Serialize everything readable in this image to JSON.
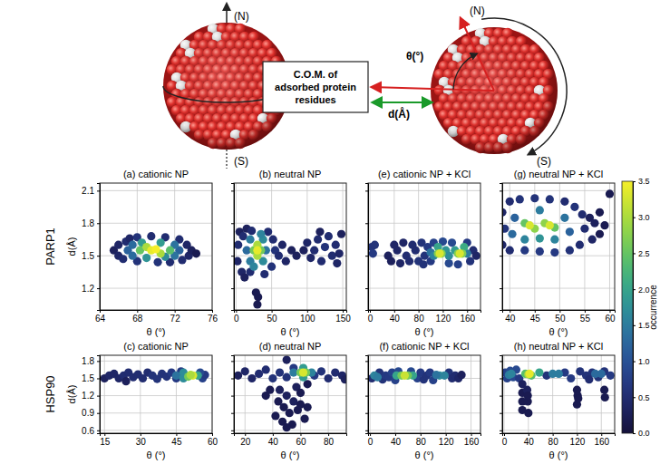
{
  "diagram": {
    "north_label": "(N)",
    "south_label": "(S)",
    "angle_label": "θ(°)",
    "com_label": [
      "C.O.M. of",
      "adsorbed protein",
      "residues"
    ],
    "distance_label": "d(Å)"
  },
  "row_labels": [
    "PARP1",
    "HSP90"
  ],
  "colorbar": {
    "label": "occurrence",
    "range": [
      0,
      3.5
    ],
    "ticks": [
      {
        "value": 0,
        "label": "0.0"
      },
      0.5,
      {
        "value": 1,
        "label": "1.0"
      },
      1.5,
      {
        "value": 2,
        "label": "2.0"
      },
      2.5,
      {
        "value": 3,
        "label": "3.0"
      },
      3.5
    ]
  },
  "chart_data": [
    {
      "type": "scatter",
      "title": "(a) cationic NP",
      "x_label": "θ (°)",
      "y_label": "d(Å)",
      "xlim": [
        64,
        76
      ],
      "ylim": [
        1.0,
        2.17
      ],
      "xticks": [
        64,
        68,
        72,
        76
      ],
      "yticks": [
        1.2,
        1.5,
        1.8,
        2.1
      ],
      "grid": true,
      "x": [
        65.5,
        66,
        66,
        66.5,
        66.8,
        67.2,
        68,
        68,
        69.5,
        70.2,
        71,
        71.5,
        72.5,
        72.8,
        73.3,
        73.5,
        73.8,
        74.3,
        67,
        67.5,
        67.5,
        72.5,
        72,
        72,
        68.5,
        70.5,
        69,
        71,
        68.3,
        71.5,
        69,
        70.5,
        69.5,
        70
      ],
      "y": [
        1.55,
        1.5,
        1.6,
        1.47,
        1.63,
        1.66,
        1.45,
        1.67,
        1.68,
        1.44,
        1.67,
        1.44,
        1.65,
        1.46,
        1.6,
        1.5,
        1.55,
        1.52,
        1.55,
        1.5,
        1.6,
        1.55,
        1.5,
        1.6,
        1.62,
        1.62,
        1.48,
        1.49,
        1.55,
        1.55,
        1.58,
        1.52,
        1.55,
        1.56
      ],
      "occurrence": [
        0.3,
        0.4,
        0.4,
        0.5,
        0.5,
        0.4,
        0.6,
        0.6,
        0.5,
        0.6,
        0.5,
        0.5,
        0.5,
        0.5,
        0.4,
        0.4,
        0.3,
        0.2,
        1.2,
        1.3,
        1.3,
        1.2,
        1.4,
        1.4,
        1.9,
        1.9,
        1.8,
        1.7,
        2.5,
        2.4,
        3.0,
        3.0,
        3.4,
        3.5
      ]
    },
    {
      "type": "scatter",
      "title": "(b) neutral NP",
      "x_label": "θ (°)",
      "xlim": [
        -3,
        155
      ],
      "ylim": [
        1.0,
        2.17
      ],
      "xticks": [
        0,
        50,
        100,
        150
      ],
      "yticks": [
        1.2,
        1.5,
        1.8,
        2.1
      ],
      "grid": true,
      "tick_labels": "x",
      "x": [
        2,
        3,
        5,
        8,
        10,
        12,
        15,
        20,
        45,
        50,
        52,
        55,
        60,
        65,
        70,
        78,
        85,
        95,
        100,
        105,
        110,
        115,
        120,
        125,
        130,
        135,
        140,
        145,
        148,
        142,
        118,
        30,
        31,
        28,
        40,
        22,
        15,
        20,
        20,
        42,
        38,
        38,
        25,
        35,
        25,
        35,
        30,
        30,
        30
      ],
      "y": [
        1.45,
        1.6,
        1.72,
        1.35,
        1.68,
        1.3,
        1.75,
        1.35,
        1.72,
        1.4,
        1.65,
        1.55,
        1.5,
        1.6,
        1.45,
        1.55,
        1.5,
        1.55,
        1.62,
        1.48,
        1.55,
        1.65,
        1.45,
        1.58,
        1.68,
        1.5,
        1.6,
        1.52,
        1.7,
        1.43,
        1.72,
        1.05,
        1.12,
        1.16,
        1.33,
        1.73,
        1.55,
        1.45,
        1.65,
        1.55,
        1.45,
        1.65,
        1.4,
        1.7,
        1.55,
        1.55,
        1.5,
        1.6,
        1.55
      ],
      "occurrence": [
        0.4,
        0.5,
        0.3,
        0.4,
        0.5,
        0.3,
        0.3,
        0.5,
        0.5,
        0.6,
        0.5,
        0.6,
        0.5,
        0.4,
        0.4,
        0.3,
        0.3,
        0.3,
        0.4,
        0.4,
        0.5,
        0.5,
        0.5,
        0.6,
        0.5,
        0.5,
        0.5,
        0.4,
        0.3,
        0.4,
        0.3,
        0.2,
        0.2,
        0.2,
        0.5,
        0.5,
        1.3,
        1.5,
        1.5,
        1.4,
        1.7,
        1.7,
        1.6,
        1.6,
        2.6,
        2.6,
        3.0,
        3.0,
        3.4
      ]
    },
    {
      "type": "scatter",
      "title": "(e) cationic NP + KCl",
      "x_label": "θ (°)",
      "xlim": [
        -3,
        182
      ],
      "ylim": [
        1.0,
        2.17
      ],
      "xticks": [
        0,
        40,
        80,
        120,
        160
      ],
      "yticks": [
        1.2,
        1.5,
        1.8,
        2.1
      ],
      "grid": true,
      "tick_labels": "x",
      "x": [
        3,
        5,
        8,
        30,
        35,
        40,
        45,
        50,
        55,
        60,
        65,
        70,
        75,
        80,
        85,
        90,
        95,
        100,
        170,
        175,
        165,
        160,
        105,
        135,
        130,
        145,
        120,
        88,
        100,
        105,
        125,
        140,
        160,
        130,
        112,
        155,
        112,
        118,
        145,
        152,
        115,
        148
      ],
      "y": [
        1.58,
        1.52,
        1.6,
        1.5,
        1.45,
        1.6,
        1.55,
        1.43,
        1.62,
        1.5,
        1.45,
        1.6,
        1.55,
        1.45,
        1.62,
        1.5,
        1.58,
        1.45,
        1.55,
        1.5,
        1.45,
        1.62,
        1.62,
        1.62,
        1.43,
        1.42,
        1.63,
        1.42,
        1.53,
        1.5,
        1.55,
        1.55,
        1.52,
        1.5,
        1.58,
        1.58,
        1.52,
        1.52,
        1.52,
        1.52,
        1.52,
        1.52
      ],
      "occurrence": [
        0.6,
        0.7,
        0.6,
        0.3,
        0.3,
        0.4,
        0.4,
        0.4,
        0.4,
        0.5,
        0.5,
        0.5,
        0.5,
        0.6,
        0.6,
        0.6,
        0.7,
        0.7,
        0.5,
        0.4,
        0.6,
        0.7,
        0.8,
        0.9,
        0.9,
        0.8,
        0.9,
        0.6,
        1.4,
        1.6,
        1.8,
        1.9,
        1.5,
        1.7,
        2.0,
        2.1,
        2.7,
        2.7,
        2.7,
        2.7,
        3.3,
        3.3
      ]
    },
    {
      "type": "scatter",
      "title": "(g) neutral NP + KCl",
      "x_label": "θ (°)",
      "xlim": [
        38.5,
        61
      ],
      "ylim": [
        1.0,
        2.17
      ],
      "xticks": [
        40,
        45,
        50,
        55,
        60
      ],
      "yticks": [
        1.2,
        1.5,
        1.8,
        2.1
      ],
      "grid": true,
      "tick_labels": "x",
      "x": [
        38.5,
        38.5,
        39,
        40,
        40,
        42,
        45,
        48,
        51,
        53,
        54,
        52,
        49,
        46,
        43,
        55,
        56,
        57,
        58,
        58,
        59,
        60,
        56.5,
        54.5,
        40.5,
        41,
        43,
        46,
        49,
        51,
        52,
        46,
        43,
        45,
        47,
        49,
        44,
        48
      ],
      "y": [
        1.6,
        1.9,
        1.75,
        2.0,
        1.55,
        2.02,
        2.03,
        2.02,
        2.0,
        1.95,
        1.6,
        1.55,
        1.53,
        1.54,
        1.55,
        1.75,
        1.85,
        1.8,
        1.7,
        1.9,
        1.78,
        2.07,
        1.65,
        1.88,
        1.7,
        1.85,
        1.65,
        1.92,
        1.65,
        1.85,
        1.72,
        1.66,
        1.8,
        1.75,
        1.8,
        1.76,
        1.78,
        1.78
      ],
      "occurrence": [
        0.4,
        0.4,
        0.6,
        0.5,
        0.5,
        0.6,
        0.6,
        0.6,
        0.5,
        0.6,
        0.5,
        0.6,
        0.7,
        0.7,
        0.7,
        0.5,
        0.3,
        0.3,
        0.2,
        0.2,
        0.2,
        0.2,
        0.4,
        0.5,
        1.3,
        1.2,
        1.6,
        1.5,
        1.6,
        1.4,
        1.2,
        1.8,
        2.5,
        2.8,
        2.8,
        2.5,
        3.3,
        3.3
      ]
    },
    {
      "type": "scatter",
      "title": "(c) cationic NP",
      "x_label": "θ (°)",
      "y_label": "d(Å)",
      "xlim": [
        13,
        60
      ],
      "ylim": [
        0.55,
        1.9
      ],
      "xticks": [
        15,
        30,
        45,
        60
      ],
      "yticks": [
        0.6,
        0.9,
        1.2,
        1.5,
        1.8
      ],
      "grid": true,
      "x": [
        15,
        17,
        19,
        21,
        23,
        25,
        27,
        29,
        31,
        33,
        35,
        37,
        39,
        41,
        43,
        45,
        47,
        56,
        57,
        55,
        24,
        45,
        48,
        48,
        54,
        50,
        52,
        51
      ],
      "y": [
        1.5,
        1.55,
        1.58,
        1.5,
        1.55,
        1.6,
        1.52,
        1.57,
        1.5,
        1.6,
        1.55,
        1.49,
        1.58,
        1.53,
        1.6,
        1.5,
        1.62,
        1.5,
        1.56,
        1.6,
        1.45,
        1.55,
        1.5,
        1.6,
        1.55,
        1.53,
        1.55,
        1.56
      ],
      "occurrence": [
        0.3,
        0.4,
        0.4,
        0.4,
        0.5,
        0.5,
        0.5,
        0.5,
        0.5,
        0.5,
        0.6,
        0.6,
        0.6,
        0.6,
        0.7,
        0.7,
        0.7,
        0.8,
        0.7,
        0.9,
        0.3,
        1.4,
        1.7,
        1.7,
        2.0,
        2.6,
        3.3,
        3.0
      ]
    },
    {
      "type": "scatter",
      "title": "(d) neutral NP",
      "x_label": "θ (°)",
      "xlim": [
        12,
        93
      ],
      "ylim": [
        0.55,
        1.9
      ],
      "xticks": [
        20,
        40,
        60,
        80
      ],
      "yticks": [
        0.6,
        0.9,
        1.2,
        1.5,
        1.8
      ],
      "grid": true,
      "tick_labels": "x",
      "x": [
        15,
        20,
        25,
        30,
        35,
        40,
        45,
        50,
        55,
        70,
        75,
        80,
        85,
        90,
        92,
        45,
        50,
        55,
        48,
        52,
        58,
        42,
        60,
        63,
        47,
        54,
        50,
        65,
        44,
        57,
        35,
        60,
        65,
        50,
        38,
        55,
        68,
        62,
        62,
        60,
        64,
        62
      ],
      "y": [
        1.55,
        1.62,
        1.5,
        1.58,
        1.65,
        1.5,
        1.6,
        1.52,
        1.68,
        1.55,
        1.62,
        1.5,
        1.6,
        1.55,
        1.48,
        1.3,
        1.2,
        1.1,
        1.0,
        0.9,
        0.95,
        0.85,
        1.05,
        0.8,
        0.75,
        0.7,
        0.65,
        1.0,
        1.1,
        1.35,
        1.2,
        1.25,
        1.4,
        1.82,
        1.3,
        1.6,
        1.6,
        1.52,
        1.68,
        1.6,
        1.6,
        1.6
      ],
      "occurrence": [
        0.3,
        0.4,
        0.4,
        0.5,
        0.5,
        0.6,
        0.6,
        0.6,
        0.7,
        0.7,
        0.6,
        0.5,
        0.5,
        0.4,
        0.3,
        0.3,
        0.3,
        0.3,
        0.2,
        0.2,
        0.2,
        0.2,
        0.2,
        0.2,
        0.2,
        0.2,
        0.2,
        0.2,
        0.2,
        0.3,
        0.2,
        0.2,
        0.2,
        0.3,
        0.2,
        1.5,
        1.6,
        1.9,
        1.9,
        2.6,
        2.6,
        3.3
      ]
    },
    {
      "type": "scatter",
      "title": "(f) cationic NP + KCl",
      "x_label": "θ (°)",
      "xlim": [
        -3,
        175
      ],
      "ylim": [
        0.55,
        1.9
      ],
      "xticks": [
        0,
        40,
        80,
        120,
        160
      ],
      "yticks": [
        0.6,
        0.9,
        1.2,
        1.5,
        1.8
      ],
      "grid": true,
      "tick_labels": "x",
      "x": [
        3,
        15,
        20,
        25,
        30,
        35,
        40,
        75,
        80,
        85,
        90,
        95,
        100,
        125,
        130,
        135,
        140,
        145,
        65,
        45,
        7,
        12,
        110,
        118,
        105,
        42,
        68,
        50,
        60,
        55
      ],
      "y": [
        1.5,
        1.6,
        1.48,
        1.55,
        1.52,
        1.6,
        1.47,
        1.5,
        1.6,
        1.48,
        1.55,
        1.6,
        1.47,
        1.6,
        1.5,
        1.55,
        1.5,
        1.56,
        1.62,
        1.62,
        1.55,
        1.52,
        1.55,
        1.55,
        1.56,
        1.55,
        1.55,
        1.55,
        1.55,
        1.55
      ],
      "occurrence": [
        0.5,
        0.6,
        0.6,
        0.7,
        0.7,
        0.8,
        0.8,
        0.8,
        0.7,
        0.6,
        0.6,
        0.7,
        0.8,
        0.6,
        0.5,
        0.5,
        0.4,
        0.3,
        0.9,
        0.9,
        1.6,
        1.5,
        1.7,
        1.6,
        1.4,
        2.0,
        2.0,
        2.6,
        2.6,
        3.2
      ]
    },
    {
      "type": "scatter",
      "title": "(h) neutral NP + KCl",
      "x_label": "θ (°)",
      "xlim": [
        -3,
        182
      ],
      "ylim": [
        0.55,
        1.9
      ],
      "xticks": [
        0,
        40,
        80,
        120,
        160
      ],
      "yticks": [
        0.6,
        0.9,
        1.2,
        1.5,
        1.8
      ],
      "grid": true,
      "tick_labels": "x",
      "x": [
        2,
        5,
        10,
        15,
        20,
        25,
        30,
        30,
        30,
        30,
        38,
        39,
        40,
        39,
        70,
        100,
        110,
        125,
        135,
        145,
        155,
        165,
        175,
        120,
        121,
        120,
        122,
        165,
        166,
        140,
        8,
        12,
        80,
        90,
        150,
        160,
        58,
        35,
        45,
        40,
        42
      ],
      "y": [
        1.6,
        1.5,
        1.63,
        1.52,
        1.65,
        1.5,
        1.4,
        1.25,
        1.1,
        0.95,
        1.3,
        1.1,
        0.9,
        1.2,
        1.55,
        1.6,
        1.5,
        1.62,
        1.55,
        1.6,
        1.52,
        1.62,
        1.55,
        1.3,
        1.2,
        1.05,
        1.15,
        1.3,
        1.17,
        1.48,
        1.56,
        1.58,
        1.58,
        1.58,
        1.58,
        1.58,
        1.6,
        1.58,
        1.55,
        1.57,
        1.58
      ],
      "occurrence": [
        0.8,
        0.8,
        0.9,
        0.9,
        0.9,
        0.7,
        0.3,
        0.2,
        0.2,
        0.2,
        0.3,
        0.2,
        0.2,
        0.2,
        0.6,
        0.7,
        0.7,
        0.6,
        0.6,
        0.6,
        0.6,
        0.6,
        0.7,
        0.2,
        0.2,
        0.2,
        0.2,
        0.2,
        0.2,
        0.5,
        1.5,
        1.6,
        1.5,
        1.5,
        1.3,
        1.3,
        2.0,
        2.4,
        2.4,
        3.0,
        3.4
      ]
    }
  ]
}
